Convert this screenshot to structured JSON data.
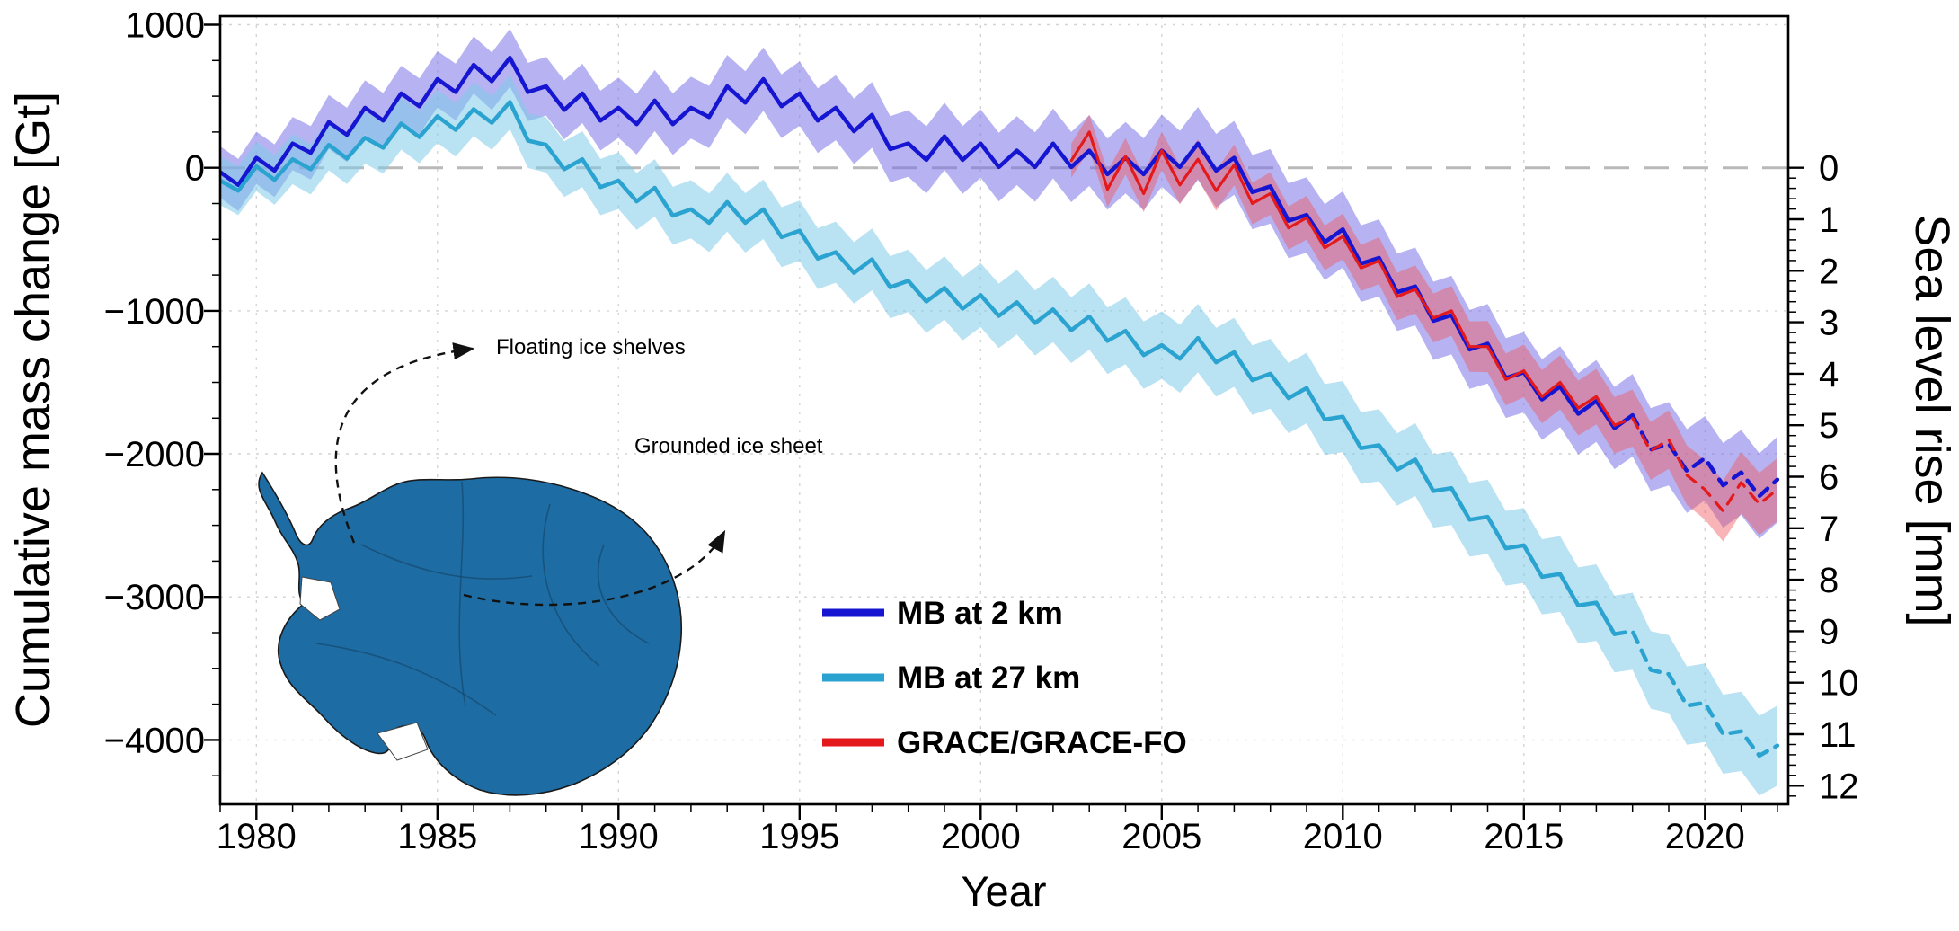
{
  "figure": {
    "background": "#ffffff"
  },
  "annotations": {
    "floating": "Floating ice shelves",
    "grounded": "Grounded ice sheet"
  },
  "map": {
    "fill": "#1d6ca3",
    "outline": "#1a1a1a"
  },
  "chart_data": {
    "type": "line",
    "title": "",
    "xlabel": "Year",
    "ylabel_left": "Cumulative mass change [Gt]",
    "ylabel_right": "Sea level rise [mm]",
    "xlim": [
      1979.0,
      2022.3
    ],
    "ylim_left_gt": [
      -4450,
      1060
    ],
    "right_axis_gt_per_mm": -360,
    "x_ticks": [
      1980,
      1985,
      1990,
      1995,
      2000,
      2005,
      2010,
      2015,
      2020
    ],
    "x_minor_step": 1,
    "y_ticks_left": [
      1000,
      0,
      -1000,
      -2000,
      -3000,
      -4000
    ],
    "y_left_minor_step": 250,
    "y_ticks_right": [
      0,
      1,
      2,
      3,
      4,
      5,
      6,
      7,
      8,
      9,
      10,
      11,
      12
    ],
    "y_right_minor_step": 0.2,
    "zero_line_gt": 0,
    "grid": true,
    "legend_position": "inside-lower-middle",
    "series": [
      {
        "name": "MB at 2 km",
        "color": "#1515d2",
        "band_color": "#7b74e8",
        "band_opacity": 0.55,
        "band_halfwidth_start": 180,
        "band_halfwidth_end": 300,
        "x_start": 1979.0,
        "x_step": 0.5,
        "dashed_from": 2018.0,
        "values": [
          -30,
          -120,
          70,
          -20,
          170,
          105,
          320,
          230,
          420,
          330,
          520,
          430,
          620,
          530,
          720,
          605,
          770,
          530,
          570,
          405,
          520,
          330,
          420,
          305,
          470,
          305,
          420,
          355,
          570,
          455,
          620,
          430,
          520,
          330,
          420,
          255,
          370,
          130,
          170,
          55,
          220,
          55,
          170,
          5,
          120,
          5,
          170,
          5,
          120,
          -45,
          70,
          -45,
          120,
          5,
          170,
          -20,
          70,
          -170,
          -130,
          -370,
          -330,
          -520,
          -430,
          -670,
          -630,
          -870,
          -830,
          -1070,
          -1030,
          -1270,
          -1230,
          -1470,
          -1430,
          -1620,
          -1530,
          -1720,
          -1630,
          -1820,
          -1730,
          -1970,
          -1930,
          -2120,
          -2030,
          -2220,
          -2130,
          -2295,
          -2180
        ]
      },
      {
        "name": "MB at 27 km",
        "color": "#2ba3d0",
        "band_color": "#7fcbe8",
        "band_opacity": 0.55,
        "band_halfwidth_start": 170,
        "band_halfwidth_end": 280,
        "x_start": 1979.0,
        "x_step": 0.5,
        "dashed_from": 2017.5,
        "values": [
          -90,
          -160,
          10,
          -85,
          60,
          -10,
          160,
          65,
          210,
          140,
          310,
          215,
          360,
          265,
          410,
          315,
          460,
          190,
          160,
          -10,
          60,
          -135,
          -90,
          -235,
          -140,
          -335,
          -290,
          -385,
          -240,
          -385,
          -290,
          -485,
          -440,
          -635,
          -590,
          -735,
          -640,
          -835,
          -790,
          -935,
          -840,
          -985,
          -890,
          -1035,
          -940,
          -1085,
          -990,
          -1135,
          -1040,
          -1210,
          -1140,
          -1310,
          -1240,
          -1335,
          -1190,
          -1360,
          -1290,
          -1485,
          -1440,
          -1610,
          -1540,
          -1760,
          -1740,
          -1960,
          -1940,
          -2110,
          -2040,
          -2260,
          -2240,
          -2460,
          -2440,
          -2660,
          -2640,
          -2860,
          -2840,
          -3060,
          -3040,
          -3260,
          -3240,
          -3510,
          -3540,
          -3760,
          -3740,
          -3960,
          -3940,
          -4110,
          -4040
        ]
      },
      {
        "name": "GRACE/GRACE-FO",
        "color": "#e4191c",
        "band_color": "#f0595e",
        "band_opacity": 0.45,
        "band_halfwidth_start": 120,
        "band_halfwidth_end": 220,
        "x_start": 2002.5,
        "x_step": 0.5,
        "dashed_from": 2017.4,
        "values": [
          50,
          250,
          -150,
          80,
          -180,
          120,
          -120,
          60,
          -160,
          20,
          -250,
          -180,
          -420,
          -350,
          -560,
          -480,
          -700,
          -650,
          -900,
          -850,
          -1050,
          -1000,
          -1250,
          -1250,
          -1480,
          -1420,
          -1600,
          -1500,
          -1680,
          -1600,
          -1800,
          -1750,
          -1980,
          -1900,
          -2150,
          -2250,
          -2400,
          -2200,
          -2350,
          -2250
        ]
      }
    ]
  }
}
